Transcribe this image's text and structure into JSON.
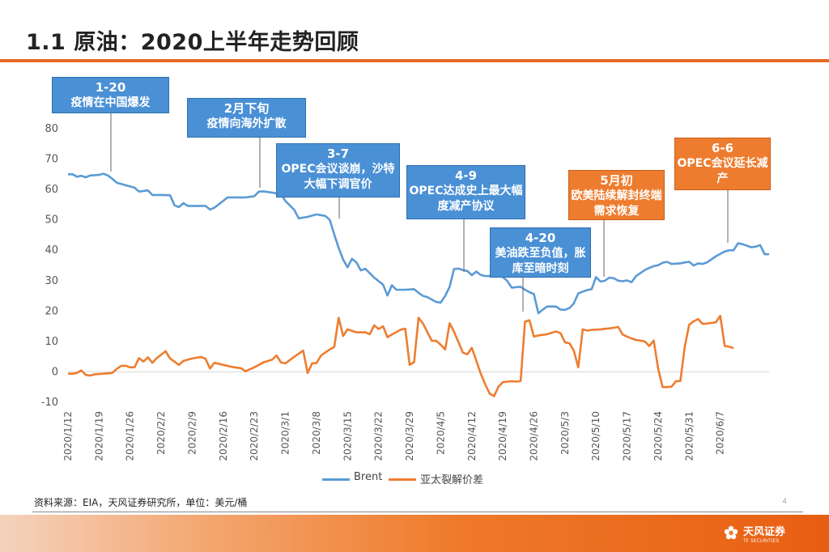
{
  "header": {
    "title": "1.1 原油：2020上半年走势回顾"
  },
  "annotations": [
    {
      "date": "1-20",
      "text": "疫情在中国爆发",
      "color": "blue"
    },
    {
      "date": "2月下旬",
      "text": "疫情向海外扩散",
      "color": "blue"
    },
    {
      "date": "3-7",
      "text": "OPEC会议谈崩，沙特大幅下调官价",
      "color": "blue"
    },
    {
      "date": "4-9",
      "text": "OPEC达成史上最大幅度减产协议",
      "color": "blue"
    },
    {
      "date": "4-20",
      "text": "美油跌至负值，胀库至暗时刻",
      "color": "blue"
    },
    {
      "date": "5月初",
      "text": "欧美陆续解封终端需求恢复",
      "color": "orange"
    },
    {
      "date": "6-6",
      "text": "OPEC会议延长减产",
      "color": "orange"
    }
  ],
  "chart_data": {
    "type": "line",
    "ylim": [
      -10,
      80
    ],
    "yticks": [
      "-10",
      "0",
      "10",
      "20",
      "30",
      "40",
      "50",
      "60",
      "70",
      "80"
    ],
    "xticks": [
      "2020/1/12",
      "2020/1/19",
      "2020/1/26",
      "2020/2/2",
      "2020/2/9",
      "2020/2/16",
      "2020/2/23",
      "2020/3/1",
      "2020/3/8",
      "2020/3/15",
      "2020/3/22",
      "2020/3/29",
      "2020/4/5",
      "2020/4/12",
      "2020/4/19",
      "2020/4/26",
      "2020/5/3",
      "2020/5/10",
      "2020/5/17",
      "2020/5/24",
      "2020/5/31",
      "2020/6/7"
    ],
    "series": [
      {
        "name": "Brent",
        "color": "#5b9bd5",
        "points": [
          [
            0,
            65
          ],
          [
            1,
            65
          ],
          [
            2,
            64.2
          ],
          [
            3,
            64.5
          ],
          [
            4,
            64
          ],
          [
            5,
            64.6
          ],
          [
            7,
            64.8
          ],
          [
            8,
            65.2
          ],
          [
            9,
            64.6
          ],
          [
            10,
            63.5
          ],
          [
            11,
            62.2
          ],
          [
            13,
            61.4
          ],
          [
            15,
            60.6
          ],
          [
            16,
            59.3
          ],
          [
            18,
            59.7
          ],
          [
            19,
            58.2
          ],
          [
            21,
            58.2
          ],
          [
            23,
            58.1
          ],
          [
            24,
            54.8
          ],
          [
            25,
            54.2
          ],
          [
            26,
            55.5
          ],
          [
            27,
            54.6
          ],
          [
            29,
            54.6
          ],
          [
            31,
            54.6
          ],
          [
            32,
            53.4
          ],
          [
            33,
            54
          ],
          [
            36,
            57.4
          ],
          [
            38,
            57.4
          ],
          [
            40,
            57.4
          ],
          [
            42,
            57.8
          ],
          [
            43,
            59.3
          ],
          [
            44,
            59.4
          ],
          [
            46,
            59
          ],
          [
            48,
            58.4
          ],
          [
            49,
            56.2
          ],
          [
            51,
            53.3
          ],
          [
            52,
            50.5
          ],
          [
            54,
            51
          ],
          [
            56,
            51.8
          ],
          [
            58,
            51.3
          ],
          [
            59,
            50
          ],
          [
            60,
            45.2
          ],
          [
            61,
            40.8
          ],
          [
            62,
            37
          ],
          [
            63,
            34.4
          ],
          [
            64,
            37.2
          ],
          [
            65,
            36
          ],
          [
            66,
            33.4
          ],
          [
            67,
            33.9
          ],
          [
            68,
            32.5
          ],
          [
            69,
            31
          ],
          [
            71,
            28.7
          ],
          [
            72,
            25.1
          ],
          [
            73,
            28.5
          ],
          [
            74,
            27
          ],
          [
            76,
            27
          ],
          [
            78,
            27.2
          ],
          [
            79,
            26
          ],
          [
            80,
            25
          ],
          [
            81,
            24.6
          ],
          [
            82,
            23.8
          ],
          [
            83,
            23
          ],
          [
            84,
            22.8
          ],
          [
            85,
            25
          ],
          [
            86,
            28
          ],
          [
            87,
            33.8
          ],
          [
            88,
            34
          ],
          [
            89,
            33.5
          ],
          [
            90,
            33.2
          ],
          [
            91,
            31.8
          ],
          [
            92,
            33
          ],
          [
            93,
            31.9
          ],
          [
            94,
            31.5
          ],
          [
            96,
            31.5
          ],
          [
            97,
            31.6
          ],
          [
            98,
            31.2
          ],
          [
            99,
            29.9
          ],
          [
            100,
            27.7
          ],
          [
            102,
            28
          ],
          [
            103,
            27
          ],
          [
            104,
            26.2
          ],
          [
            105,
            25.6
          ],
          [
            106,
            19.3
          ],
          [
            107,
            20.5
          ],
          [
            108,
            21.5
          ],
          [
            110,
            21.5
          ],
          [
            111,
            20.5
          ],
          [
            112,
            20.4
          ],
          [
            113,
            21
          ],
          [
            114,
            22.5
          ],
          [
            115,
            25.8
          ],
          [
            116,
            26.4
          ],
          [
            117,
            26.9
          ],
          [
            118,
            27.2
          ],
          [
            119,
            31.2
          ],
          [
            120,
            29.7
          ],
          [
            121,
            30
          ],
          [
            122,
            31
          ],
          [
            123,
            30.8
          ],
          [
            124,
            30
          ],
          [
            125,
            29.8
          ],
          [
            126,
            30.1
          ],
          [
            127,
            29.5
          ],
          [
            128,
            31.5
          ],
          [
            129,
            32.5
          ],
          [
            130,
            33.5
          ],
          [
            131,
            34.2
          ],
          [
            132,
            34.8
          ],
          [
            133,
            35.1
          ],
          [
            134,
            35.9
          ],
          [
            135,
            36.2
          ],
          [
            136,
            35.5
          ],
          [
            138,
            35.7
          ],
          [
            139,
            36
          ],
          [
            140,
            36.2
          ],
          [
            141,
            35
          ],
          [
            142,
            35.7
          ],
          [
            143,
            35.5
          ],
          [
            144,
            36
          ],
          [
            145,
            37
          ],
          [
            146,
            38
          ],
          [
            147,
            38.8
          ],
          [
            148,
            39.6
          ],
          [
            149,
            40
          ],
          [
            150,
            40
          ],
          [
            151,
            42.3
          ],
          [
            152,
            42
          ],
          [
            153,
            41.5
          ],
          [
            154,
            41
          ],
          [
            155,
            41.2
          ],
          [
            156,
            41.7
          ],
          [
            157,
            38.7
          ],
          [
            158,
            38.7
          ]
        ]
      },
      {
        "name": "亚太裂解价差",
        "color": "#ed7d31",
        "points": [
          [
            0,
            -0.6
          ],
          [
            1,
            -0.6
          ],
          [
            2,
            -0.4
          ],
          [
            3,
            0.5
          ],
          [
            4,
            -1
          ],
          [
            5,
            -1.2
          ],
          [
            6,
            -0.8
          ],
          [
            7,
            -0.7
          ],
          [
            8,
            -0.6
          ],
          [
            9,
            -0.5
          ],
          [
            10,
            -0.3
          ],
          [
            11,
            1
          ],
          [
            12,
            2
          ],
          [
            13,
            2
          ],
          [
            14,
            1.5
          ],
          [
            15,
            1.5
          ],
          [
            16,
            4.5
          ],
          [
            17,
            3.4
          ],
          [
            18,
            4.8
          ],
          [
            19,
            3
          ],
          [
            20,
            4.5
          ],
          [
            22,
            6.8
          ],
          [
            23,
            4.4
          ],
          [
            25,
            2.3
          ],
          [
            26,
            3.6
          ],
          [
            28,
            4.4
          ],
          [
            30,
            4.9
          ],
          [
            31,
            4.3
          ],
          [
            32,
            1.1
          ],
          [
            33,
            3
          ],
          [
            35,
            2.3
          ],
          [
            37,
            1.6
          ],
          [
            39,
            1.2
          ],
          [
            40,
            0.2
          ],
          [
            42,
            1.5
          ],
          [
            44,
            3.1
          ],
          [
            46,
            4
          ],
          [
            47,
            5.4
          ],
          [
            48,
            3.1
          ],
          [
            49,
            2.8
          ],
          [
            51,
            5
          ],
          [
            53,
            7
          ],
          [
            54,
            -0.4
          ],
          [
            55,
            2.8
          ],
          [
            56,
            2.9
          ],
          [
            57,
            5.3
          ],
          [
            58,
            6.4
          ],
          [
            59,
            7.4
          ],
          [
            60,
            8.2
          ],
          [
            61,
            17.8
          ],
          [
            62,
            11.8
          ],
          [
            63,
            14
          ],
          [
            65,
            13
          ],
          [
            67,
            13
          ],
          [
            68,
            12.4
          ],
          [
            69,
            15.3
          ],
          [
            70,
            14.1
          ],
          [
            71,
            15
          ],
          [
            72,
            11.4
          ],
          [
            73,
            12.3
          ],
          [
            75,
            13.9
          ],
          [
            76,
            14.2
          ],
          [
            77,
            2.3
          ],
          [
            78,
            3.2
          ],
          [
            79,
            17.8
          ],
          [
            80,
            15.9
          ],
          [
            81,
            13
          ],
          [
            82,
            10.2
          ],
          [
            83,
            10.2
          ],
          [
            84,
            8.9
          ],
          [
            85,
            7.4
          ],
          [
            86,
            16
          ],
          [
            87,
            13.2
          ],
          [
            88,
            9.8
          ],
          [
            89,
            6.3
          ],
          [
            90,
            5.8
          ],
          [
            91,
            7.9
          ],
          [
            92,
            3.7
          ],
          [
            93,
            -0.5
          ],
          [
            94,
            -4
          ],
          [
            95,
            -7.1
          ],
          [
            96,
            -8
          ],
          [
            97,
            -4.9
          ],
          [
            98,
            -3.4
          ],
          [
            99,
            -3.2
          ],
          [
            100,
            -3.1
          ],
          [
            101,
            -3.2
          ],
          [
            102,
            -3
          ],
          [
            103,
            16.5
          ],
          [
            104,
            17
          ],
          [
            105,
            11.6
          ],
          [
            106,
            12
          ],
          [
            108,
            12.4
          ],
          [
            110,
            13.3
          ],
          [
            111,
            12.7
          ],
          [
            112,
            9.7
          ],
          [
            113,
            9.4
          ],
          [
            114,
            7
          ],
          [
            115,
            1.5
          ],
          [
            116,
            14
          ],
          [
            117,
            13.6
          ],
          [
            118,
            13.8
          ],
          [
            120,
            14
          ],
          [
            122,
            14.3
          ],
          [
            123,
            14.5
          ],
          [
            124,
            14.8
          ],
          [
            125,
            12.3
          ],
          [
            126,
            11.6
          ],
          [
            127,
            11
          ],
          [
            128,
            10.5
          ],
          [
            129,
            10.3
          ],
          [
            130,
            10
          ],
          [
            131,
            8.5
          ],
          [
            132,
            10.3
          ],
          [
            133,
            1
          ],
          [
            134,
            -5
          ],
          [
            135,
            -5
          ],
          [
            136,
            -4.9
          ],
          [
            137,
            -3.1
          ],
          [
            138,
            -3
          ],
          [
            139,
            8.4
          ],
          [
            140,
            15.5
          ],
          [
            141,
            16.6
          ],
          [
            142,
            17.4
          ],
          [
            143,
            15.8
          ],
          [
            144,
            15.9
          ],
          [
            145,
            16.1
          ],
          [
            146,
            16.3
          ],
          [
            147,
            18.4
          ],
          [
            148,
            8.5
          ],
          [
            149,
            8.3
          ],
          [
            150,
            7.8
          ]
        ]
      }
    ]
  },
  "source": "资料来源：EIA，天风证券研究所，单位：美元/桶",
  "brand": {
    "name": "天风证券",
    "sub": "TF SECURITIES"
  },
  "page_number": "4"
}
